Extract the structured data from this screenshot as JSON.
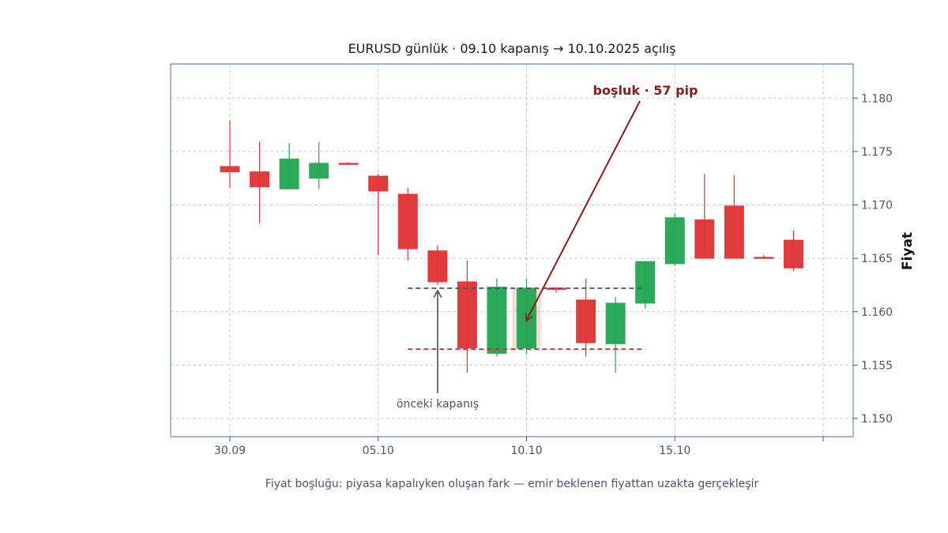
{
  "chart_data": {
    "type": "candlestick",
    "title": "EURUSD günlük · 09.10 kapanış → 10.10.2025 açılış",
    "ylabel": "Fiyat",
    "ylim": [
      1.1483,
      1.1832
    ],
    "y_ticks": [
      "1.150",
      "1.155",
      "1.160",
      "1.165",
      "1.170",
      "1.175",
      "1.180"
    ],
    "x_ticks": [
      "30.09",
      "05.10",
      "10.10",
      "15.10",
      ""
    ],
    "x_tick_days": [
      0,
      5,
      10,
      15,
      20
    ],
    "grid": true,
    "candles": [
      {
        "day": 0,
        "open": 1.1736,
        "high": 1.1779,
        "low": 1.1716,
        "close": 1.1731
      },
      {
        "day": 1,
        "open": 1.1731,
        "high": 1.1759,
        "low": 1.1683,
        "close": 1.1717
      },
      {
        "day": 2,
        "open": 1.1715,
        "high": 1.1758,
        "low": 1.1715,
        "close": 1.1743
      },
      {
        "day": 3,
        "open": 1.1725,
        "high": 1.1759,
        "low": 1.1715,
        "close": 1.1739
      },
      {
        "day": 4,
        "open": 1.1739,
        "high": 1.174,
        "low": 1.1738,
        "close": 1.1738
      },
      {
        "day": 5,
        "open": 1.1727,
        "high": 1.1729,
        "low": 1.1653,
        "close": 1.1713
      },
      {
        "day": 6,
        "open": 1.171,
        "high": 1.1716,
        "low": 1.1648,
        "close": 1.1659
      },
      {
        "day": 7,
        "open": 1.1657,
        "high": 1.1662,
        "low": 1.1625,
        "close": 1.1628
      },
      {
        "day": 8,
        "open": 1.1628,
        "high": 1.1648,
        "low": 1.1543,
        "close": 1.1566
      },
      {
        "day": 9,
        "open": 1.1561,
        "high": 1.1631,
        "low": 1.1558,
        "close": 1.1623
      },
      {
        "day": 10,
        "open": 1.1566,
        "high": 1.1631,
        "low": 1.156,
        "close": 1.1622
      },
      {
        "day": 11,
        "open": 1.1622,
        "high": 1.1623,
        "low": 1.1618,
        "close": 1.1621
      },
      {
        "day": 12,
        "open": 1.1611,
        "high": 1.1631,
        "low": 1.1558,
        "close": 1.1571
      },
      {
        "day": 13,
        "open": 1.157,
        "high": 1.1614,
        "low": 1.1543,
        "close": 1.1608
      },
      {
        "day": 14,
        "open": 1.1608,
        "high": 1.1647,
        "low": 1.1603,
        "close": 1.1647
      },
      {
        "day": 15,
        "open": 1.1645,
        "high": 1.1692,
        "low": 1.1643,
        "close": 1.1688
      },
      {
        "day": 16,
        "open": 1.1686,
        "high": 1.1729,
        "low": 1.165,
        "close": 1.165
      },
      {
        "day": 17,
        "open": 1.1699,
        "high": 1.1728,
        "low": 1.165,
        "close": 1.165
      },
      {
        "day": 18,
        "open": 1.1651,
        "high": 1.1653,
        "low": 1.165,
        "close": 1.165
      },
      {
        "day": 19,
        "open": 1.1667,
        "high": 1.1676,
        "low": 1.1638,
        "close": 1.1641
      }
    ],
    "previous_close": 1.1622,
    "gap_open": 1.1565,
    "gap_day": 10,
    "reference_lines": [
      {
        "name": "previous_close",
        "value": 1.1622,
        "from_day": 6,
        "to_day": 14,
        "color": "#4a5060"
      },
      {
        "name": "gap_open",
        "value": 1.1565,
        "from_day": 6,
        "to_day": 14,
        "color": "#d62728"
      }
    ],
    "annotations": {
      "gap_label": "boşluk · 57 pip",
      "prev_close_label": "önceki kapanış",
      "caption": "Fiyat boşluğu: piyasa kapalıyken oluşan fark — emir beklenen fiyattan uzakta gerçekleşir"
    },
    "colors": {
      "up": "#22a650",
      "down": "#e03232",
      "gap_annotation": "#8b1a1a",
      "axes_frame": "#8c9bb5",
      "grid": "#cccccc",
      "gap_highlight": "#f4b8b8"
    }
  }
}
